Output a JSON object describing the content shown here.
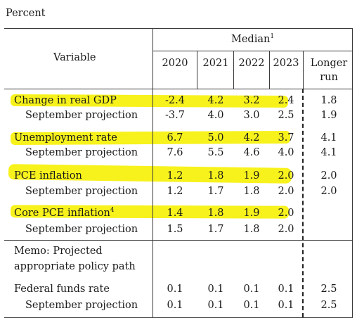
{
  "unit_label": "Percent",
  "header": {
    "variable": "Variable",
    "median": "Median",
    "median_note": "1",
    "years": [
      "2020",
      "2021",
      "2022",
      "2023"
    ],
    "longer_run_line1": "Longer",
    "longer_run_line2": "run"
  },
  "rows": [
    {
      "label": "Change in real GDP",
      "values": [
        "-2.4",
        "4.2",
        "3.2",
        "2.4"
      ],
      "longer": "1.8"
    },
    {
      "label": "September projection",
      "values": [
        "-3.7",
        "4.0",
        "3.0",
        "2.5"
      ],
      "longer": "1.9"
    },
    {
      "label": "Unemployment rate",
      "values": [
        "6.7",
        "5.0",
        "4.2",
        "3.7"
      ],
      "longer": "4.1"
    },
    {
      "label": "September projection",
      "values": [
        "7.6",
        "5.5",
        "4.6",
        "4.0"
      ],
      "longer": "4.1"
    },
    {
      "label": "PCE inflation",
      "values": [
        "1.2",
        "1.8",
        "1.9",
        "2.0"
      ],
      "longer": "2.0"
    },
    {
      "label": "September projection",
      "values": [
        "1.2",
        "1.7",
        "1.8",
        "2.0"
      ],
      "longer": "2.0"
    },
    {
      "label": "Core PCE inflation",
      "note": "4",
      "values": [
        "1.4",
        "1.8",
        "1.9",
        "2.0"
      ],
      "longer": ""
    },
    {
      "label": "September projection",
      "values": [
        "1.5",
        "1.7",
        "1.8",
        "2.0"
      ],
      "longer": ""
    }
  ],
  "memo": {
    "line1": "Memo: Projected",
    "line2": "appropriate policy path"
  },
  "policy_rows": [
    {
      "label": "Federal funds rate",
      "values": [
        "0.1",
        "0.1",
        "0.1",
        "0.1"
      ],
      "longer": "2.5"
    },
    {
      "label": "September projection",
      "values": [
        "0.1",
        "0.1",
        "0.1",
        "0.1"
      ],
      "longer": "2.5"
    }
  ],
  "highlight_color": "#f7f21c"
}
